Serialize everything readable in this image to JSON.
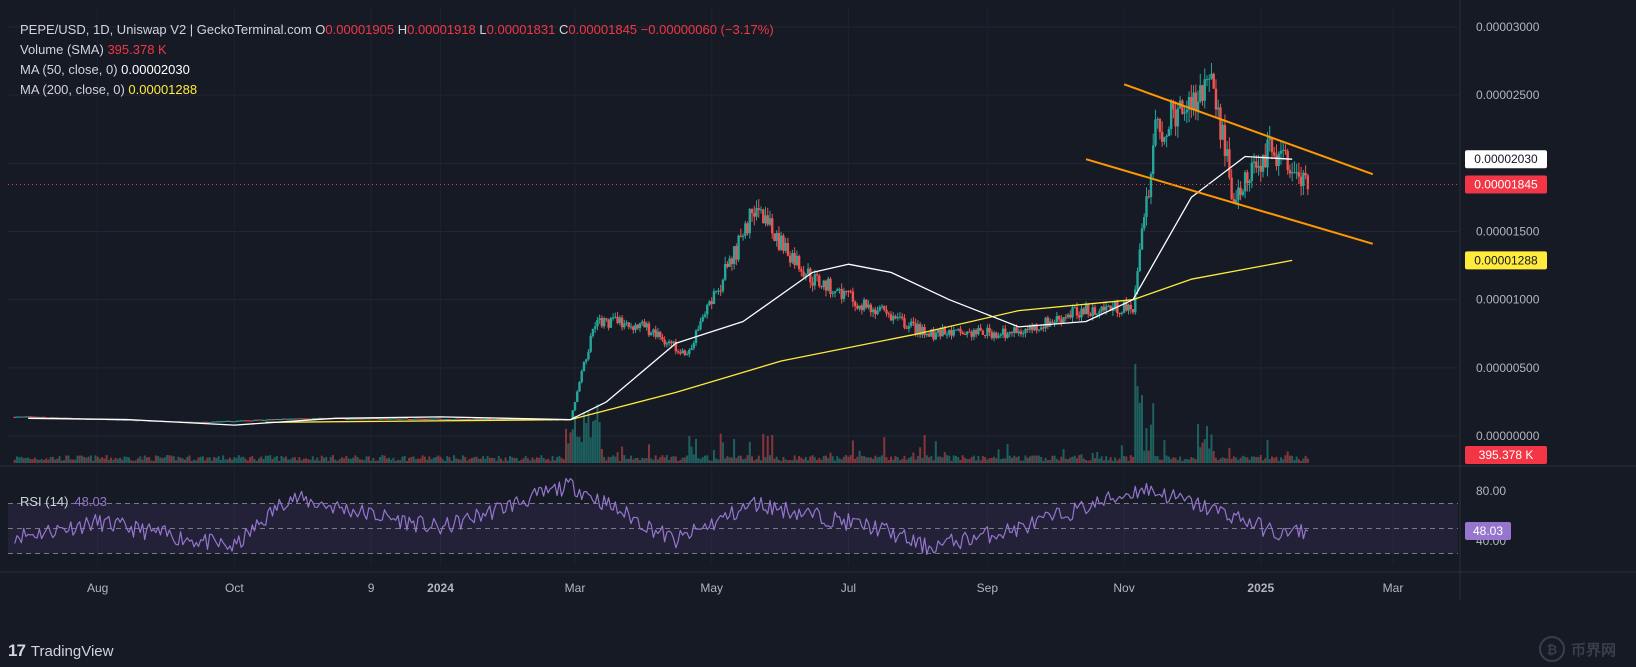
{
  "header": {
    "symbol": "PEPE/USD, 1D, Uniswap V2 | GeckoTerminal.com",
    "o_label": "O",
    "o_value": "0.00001905",
    "h_label": "H",
    "h_value": "0.00001918",
    "l_label": "L",
    "l_value": "0.00001831",
    "c_label": "C",
    "c_value": "0.00001845",
    "change": "−0.00000060 (−3.17%)"
  },
  "indicators": {
    "volume_label": "Volume (SMA)",
    "volume_value": "395.378 K",
    "ma50_label": "MA (50, close, 0)",
    "ma50_value": "0.00002030",
    "ma200_label": "MA (200, close, 0)",
    "ma200_value": "0.00001288"
  },
  "rsi": {
    "label": "RSI (14)",
    "value": "48.03",
    "levels": [
      70,
      50,
      30
    ],
    "axis_ticks": [
      "80.00",
      "40.00"
    ]
  },
  "price_axis": {
    "ticks": [
      "0.00003000",
      "0.00002500",
      "0.00001500",
      "0.00001000",
      "0.00000500",
      "0.00000000"
    ],
    "tick_values": [
      3e-05,
      2.5e-05,
      1.5e-05,
      1e-05,
      5e-06,
      0
    ],
    "badges": {
      "ma50": "0.00002030",
      "last": "0.00001845",
      "ma200": "0.00001288",
      "volume": "395.378 K"
    }
  },
  "time_axis": [
    "Aug",
    "Oct",
    "9",
    "2024",
    "Mar",
    "May",
    "Jul",
    "Sep",
    "Nov",
    "2025",
    "Mar"
  ],
  "colors": {
    "background": "#161a25",
    "up": "#26a69a",
    "down": "#ef5350",
    "ma50": "#ffffff",
    "ma200": "#ffeb3b",
    "trendline": "#ff9800",
    "rsi": "#9575cd",
    "last_price_badge": "#f23645",
    "ma200_badge": "#ffeb3b",
    "volume_badge": "#f23645"
  },
  "footer": {
    "brand": "TradingView",
    "logo_icon": "tradingview-logo-icon"
  },
  "watermark": {
    "text": "币界网",
    "icon": "coin-icon"
  },
  "chart_data": {
    "type": "candlestick",
    "title": "PEPE/USD, 1D, Uniswap V2 | GeckoTerminal.com",
    "x_range": [
      "2023-07",
      "2025-03"
    ],
    "y_range": [
      0,
      3e-05
    ],
    "last_close": 1.845e-05,
    "series": [
      {
        "name": "MA (50, close, 0)",
        "points": [
          [
            "2023-07-01",
            1.3e-06
          ],
          [
            "2023-08-15",
            1.2e-06
          ],
          [
            "2023-10-01",
            8e-07
          ],
          [
            "2023-11-15",
            1.3e-06
          ],
          [
            "2024-01-01",
            1.4e-06
          ],
          [
            "2024-02-28",
            1.2e-06
          ],
          [
            "2024-03-15",
            2.5e-06
          ],
          [
            "2024-04-15",
            6.8e-06
          ],
          [
            "2024-05-15",
            8.4e-06
          ],
          [
            "2024-06-15",
            1.2e-05
          ],
          [
            "2024-07-01",
            1.26e-05
          ],
          [
            "2024-07-20",
            1.2e-05
          ],
          [
            "2024-08-15",
            1e-05
          ],
          [
            "2024-09-15",
            8e-06
          ],
          [
            "2024-10-15",
            8.4e-06
          ],
          [
            "2024-11-05",
            1e-05
          ],
          [
            "2024-12-01",
            1.75e-05
          ],
          [
            "2024-12-25",
            2.05e-05
          ],
          [
            "2025-01-15",
            2.03e-05
          ]
        ]
      },
      {
        "name": "MA (200, close, 0)",
        "points": [
          [
            "2023-10-15",
            1e-06
          ],
          [
            "2024-02-28",
            1.2e-06
          ],
          [
            "2024-04-15",
            3.2e-06
          ],
          [
            "2024-06-01",
            5.5e-06
          ],
          [
            "2024-08-01",
            7.5e-06
          ],
          [
            "2024-09-15",
            9.2e-06
          ],
          [
            "2024-11-05",
            1e-05
          ],
          [
            "2024-12-01",
            1.15e-05
          ],
          [
            "2025-01-15",
            1.288e-05
          ]
        ]
      },
      {
        "name": "Upper trendline",
        "points": [
          [
            "2024-11-01",
            2.58e-05
          ],
          [
            "2025-02-20",
            1.92e-05
          ]
        ]
      },
      {
        "name": "Lower trendline",
        "points": [
          [
            "2024-10-15",
            2.03e-05
          ],
          [
            "2025-02-20",
            1.41e-05
          ]
        ]
      }
    ],
    "candles_outline": [
      [
        "2023-07-01",
        1.4e-06
      ],
      [
        "2023-09-15",
        1e-06
      ],
      [
        "2023-11-01",
        1.3e-06
      ],
      [
        "2024-02-28",
        1.2e-06
      ],
      [
        "2024-03-10",
        8.5e-06
      ],
      [
        "2024-04-01",
        8e-06
      ],
      [
        "2024-04-20",
        6e-06
      ],
      [
        "2024-05-20",
        1.65e-05
      ],
      [
        "2024-06-15",
        1.15e-05
      ],
      [
        "2024-07-10",
        9.5e-06
      ],
      [
        "2024-08-05",
        7.5e-06
      ],
      [
        "2024-09-15",
        7.6e-06
      ],
      [
        "2024-10-15",
        9.3e-06
      ],
      [
        "2024-11-05",
        9.5e-06
      ],
      [
        "2024-11-15",
        2.2e-05
      ],
      [
        "2024-12-10",
        2.65e-05
      ],
      [
        "2024-12-20",
        1.75e-05
      ],
      [
        "2025-01-05",
        2.1e-05
      ],
      [
        "2025-01-20",
        1.845e-05
      ]
    ],
    "rsi_outline": [
      [
        "2023-07-01",
        45
      ],
      [
        "2023-08-01",
        55
      ],
      [
        "2023-10-01",
        35
      ],
      [
        "2023-10-25",
        75
      ],
      [
        "2024-01-01",
        50
      ],
      [
        "2024-02-28",
        85
      ],
      [
        "2024-04-15",
        40
      ],
      [
        "2024-05-20",
        70
      ],
      [
        "2024-07-15",
        50
      ],
      [
        "2024-08-05",
        35
      ],
      [
        "2024-09-15",
        50
      ],
      [
        "2024-11-10",
        82
      ],
      [
        "2024-12-20",
        60
      ],
      [
        "2025-01-10",
        45
      ],
      [
        "2025-01-20",
        48
      ]
    ]
  }
}
